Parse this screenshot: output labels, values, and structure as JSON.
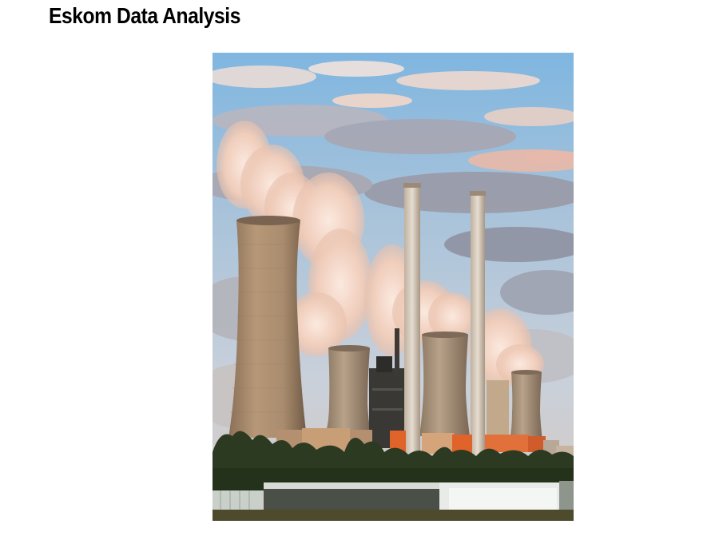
{
  "page": {
    "title": "Eskom Data Analysis"
  },
  "photo": {
    "subject": "power-station-photo",
    "colors": {
      "sky_top": "#7fb6e0",
      "sky_mid": "#c9d3de",
      "cloud_warm": "#f2c9b4",
      "cloud_grey": "#9a9aa6",
      "tower": "#a68a6c",
      "chimney": "#cdbfae",
      "orange_building": "#e0632a",
      "trees": "#2c3a22",
      "greenhouse": "#d9dcd6",
      "ground": "#4e4a2c"
    }
  }
}
